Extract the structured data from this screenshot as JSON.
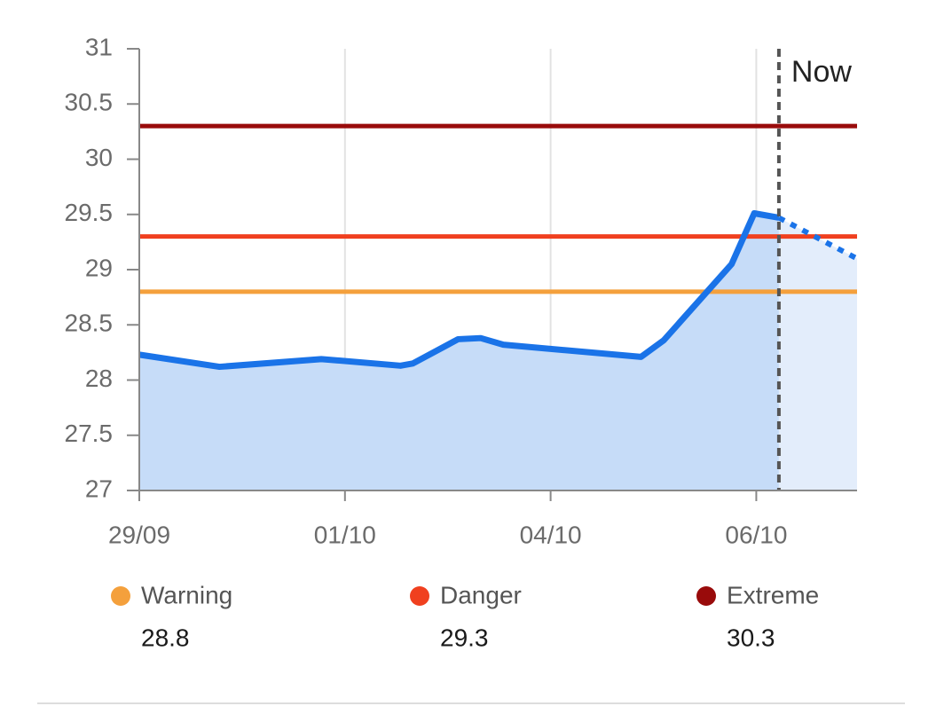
{
  "chart_data": {
    "type": "line",
    "xlim": [
      0,
      3.49
    ],
    "ylim": [
      27,
      31
    ],
    "yticks": [
      27,
      27.5,
      28,
      28.5,
      29,
      29.5,
      30,
      30.5,
      31
    ],
    "xticks": [
      {
        "value": 0,
        "label": "29/09"
      },
      {
        "value": 1,
        "label": "01/10"
      },
      {
        "value": 2,
        "label": "04/10"
      },
      {
        "value": 3,
        "label": "06/10"
      }
    ],
    "grid": true,
    "series": [
      {
        "color": "#1a73e8",
        "style": "solid",
        "fill": "#c6dcf8",
        "x": [
          0,
          0.39,
          0.885,
          1.27,
          1.33,
          1.55,
          1.66,
          1.77,
          2.44,
          2.55,
          2.88,
          2.99,
          3.11
        ],
        "values": [
          28.23,
          28.12,
          28.19,
          28.13,
          28.15,
          28.37,
          28.38,
          28.32,
          28.21,
          28.36,
          29.05,
          29.51,
          29.47
        ]
      },
      {
        "color": "#1a73e8",
        "style": "dotted",
        "fill": "#e3edfb",
        "x": [
          3.11,
          3.49
        ],
        "values": [
          29.47,
          29.1
        ]
      }
    ],
    "now": {
      "label": "Now",
      "x": 3.11,
      "color": "#555555"
    },
    "thresholds": [
      {
        "label": "Warning",
        "value": 28.8,
        "color": "#f4a03c"
      },
      {
        "label": "Danger",
        "value": 29.3,
        "color": "#f0401f"
      },
      {
        "label": "Extreme",
        "value": 30.3,
        "color": "#990b0b"
      }
    ]
  }
}
